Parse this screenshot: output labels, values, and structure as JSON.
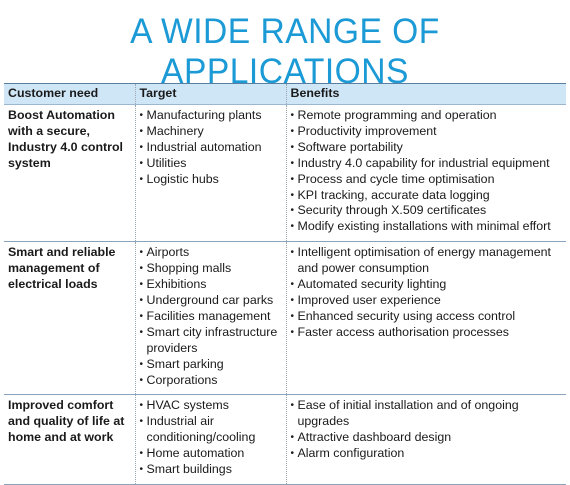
{
  "title": "A WIDE RANGE OF APPLICATIONS",
  "table": {
    "headers": [
      "Customer need",
      "Target",
      "Benefits"
    ],
    "rows": [
      {
        "need": "Boost Automation with a secure, Industry 4.0 control system",
        "targets": [
          "Manufacturing plants",
          "Machinery",
          "Industrial automation",
          "Utilities",
          "Logistic hubs"
        ],
        "benefits": [
          "Remote programming and operation",
          "Productivity improvement",
          "Software portability",
          "Industry 4.0 capability for industrial equipment",
          "Process and cycle time optimisation",
          "KPI tracking, accurate data logging",
          "Security through X.509 certificates",
          "Modify existing installations with minimal effort"
        ]
      },
      {
        "need": "Smart and reliable management of electrical loads",
        "targets": [
          "Airports",
          "Shopping malls",
          "Exhibitions",
          "Underground car parks",
          "Facilities management",
          "Smart city infrastructure providers",
          "Smart parking",
          "Corporations"
        ],
        "benefits": [
          "Intelligent optimisation of energy management and power consumption",
          "Automated security lighting",
          "Improved user experience",
          "Enhanced security using access control",
          "Faster access authorisation processes"
        ]
      },
      {
        "need": "Improved comfort and quality of life at home and at work",
        "targets": [
          "HVAC systems",
          "Industrial air conditioning/cooling",
          "Home automation",
          "Smart buildings"
        ],
        "benefits": [
          "Ease of initial installation and of ongoing upgrades",
          "Attractive dashboard design",
          "Alarm configuration"
        ]
      }
    ]
  }
}
